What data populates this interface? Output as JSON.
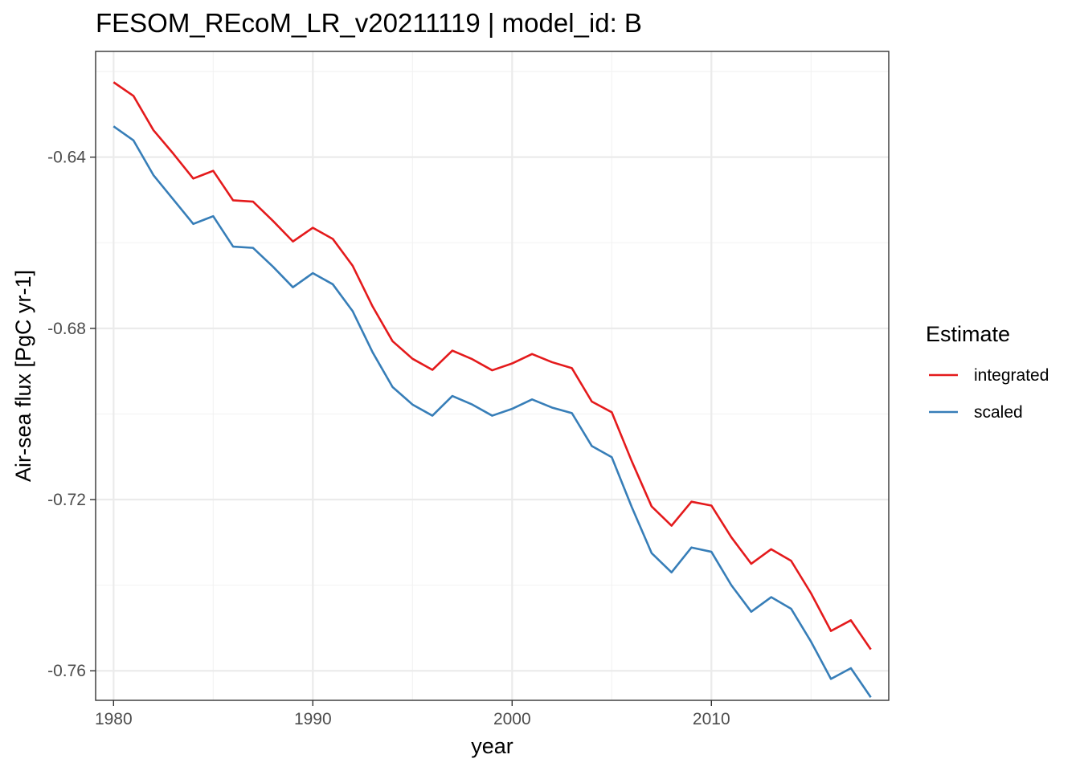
{
  "chart_data": {
    "type": "line",
    "title": "FESOM_REcoM_LR_v20211119 | model_id: B",
    "xlabel": "year",
    "ylabel": "Air-sea flux [PgC yr-1]",
    "xlim": [
      1979.1,
      2018.9
    ],
    "ylim": [
      -0.7669,
      -0.6153
    ],
    "x_ticks": [
      1980,
      1990,
      2000,
      2010
    ],
    "x_tick_labels": [
      "1980",
      "1990",
      "2000",
      "2010"
    ],
    "y_ticks": [
      -0.64,
      -0.68,
      -0.72,
      -0.76
    ],
    "y_tick_labels": [
      "-0.64",
      "-0.68",
      "-0.72",
      "-0.76"
    ],
    "grid": true,
    "legend": {
      "title": "Estimate",
      "position": "right"
    },
    "x": [
      1980,
      1981,
      1982,
      1983,
      1984,
      1985,
      1986,
      1987,
      1988,
      1989,
      1990,
      1991,
      1992,
      1993,
      1994,
      1995,
      1996,
      1997,
      1998,
      1999,
      2000,
      2001,
      2002,
      2003,
      2004,
      2005,
      2006,
      2007,
      2008,
      2009,
      2010,
      2011,
      2012,
      2013,
      2014,
      2015,
      2016,
      2017,
      2018
    ],
    "series": [
      {
        "name": "integrated",
        "color": "#e41a1c",
        "values": [
          -0.6225,
          -0.6257,
          -0.6337,
          -0.6392,
          -0.645,
          -0.6432,
          -0.6501,
          -0.6504,
          -0.6549,
          -0.6597,
          -0.6565,
          -0.6591,
          -0.6654,
          -0.6749,
          -0.683,
          -0.6871,
          -0.6897,
          -0.6852,
          -0.6872,
          -0.6898,
          -0.6882,
          -0.686,
          -0.6879,
          -0.6893,
          -0.6971,
          -0.6996,
          -0.711,
          -0.7216,
          -0.7261,
          -0.7205,
          -0.7214,
          -0.7288,
          -0.735,
          -0.7316,
          -0.7343,
          -0.7419,
          -0.7507,
          -0.7482,
          -0.755
        ]
      },
      {
        "name": "scaled",
        "color": "#377eb8",
        "values": [
          -0.6328,
          -0.6361,
          -0.6442,
          -0.6499,
          -0.6556,
          -0.6538,
          -0.6609,
          -0.6612,
          -0.6656,
          -0.6704,
          -0.6671,
          -0.6697,
          -0.676,
          -0.6856,
          -0.6937,
          -0.6978,
          -0.7004,
          -0.6958,
          -0.6978,
          -0.7004,
          -0.6988,
          -0.6966,
          -0.6985,
          -0.6998,
          -0.7075,
          -0.7101,
          -0.7217,
          -0.7325,
          -0.737,
          -0.7312,
          -0.7322,
          -0.74,
          -0.7462,
          -0.7428,
          -0.7455,
          -0.7532,
          -0.7619,
          -0.7594,
          -0.7662
        ]
      }
    ]
  }
}
